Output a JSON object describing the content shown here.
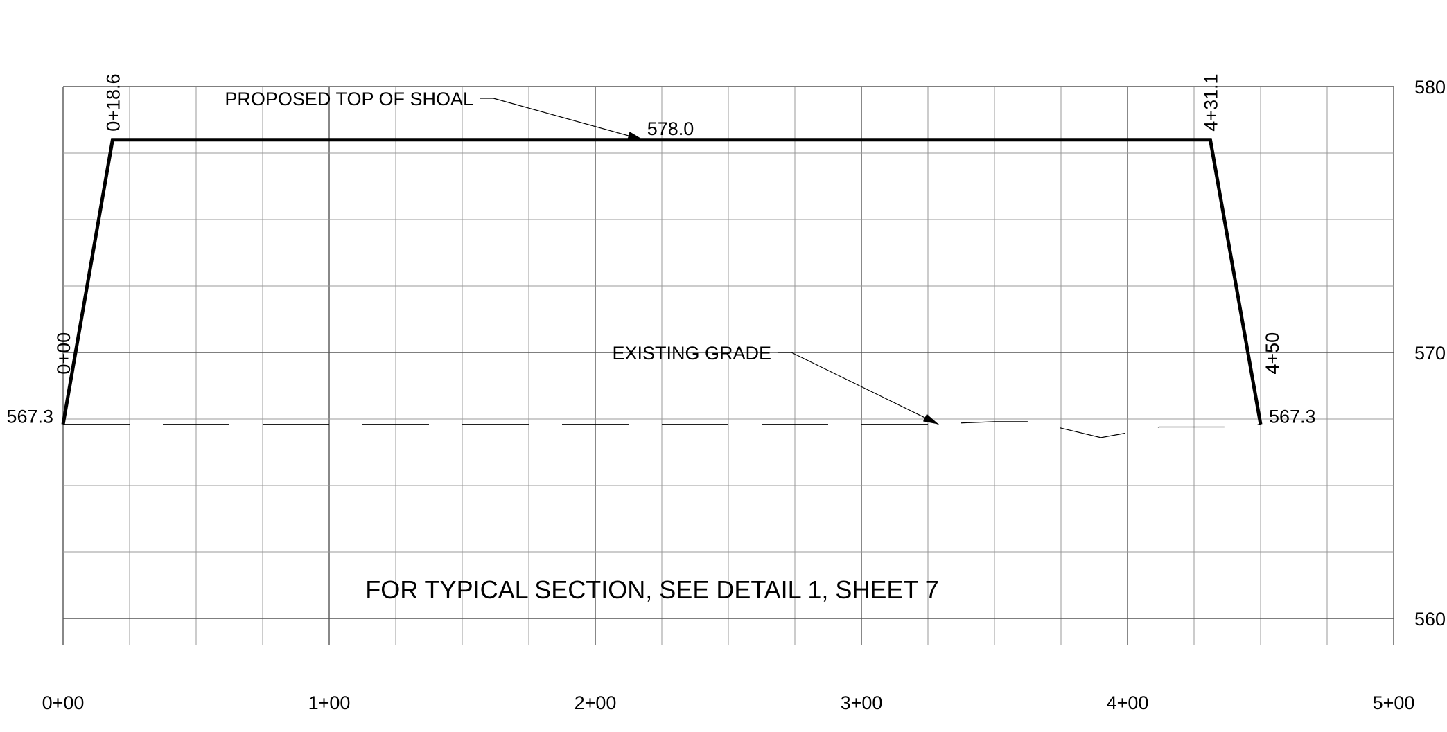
{
  "chart_data": {
    "type": "line",
    "title": "",
    "xlabel": "",
    "ylabel": "",
    "xlim": [
      0,
      500
    ],
    "ylim": [
      560,
      580
    ],
    "grid": true,
    "x_ticks": [
      {
        "x": 0,
        "label": "0+00"
      },
      {
        "x": 100,
        "label": "1+00"
      },
      {
        "x": 200,
        "label": "2+00"
      },
      {
        "x": 300,
        "label": "3+00"
      },
      {
        "x": 400,
        "label": "4+00"
      },
      {
        "x": 500,
        "label": "5+00"
      }
    ],
    "y_ticks": [
      {
        "y": 560,
        "label": "560"
      },
      {
        "y": 570,
        "label": "570"
      },
      {
        "y": 580,
        "label": "580"
      }
    ],
    "series": [
      {
        "name": "PROPOSED TOP OF SHOAL",
        "style": "solid",
        "x": [
          0,
          18.6,
          431.1,
          450
        ],
        "y": [
          567.3,
          578.0,
          578.0,
          567.3
        ]
      },
      {
        "name": "EXISTING GRADE",
        "style": "dashed",
        "x": [
          0,
          325,
          350,
          365,
          390,
          412,
          425,
          440,
          450
        ],
        "y": [
          567.3,
          567.3,
          567.4,
          567.4,
          566.8,
          567.2,
          567.2,
          567.2,
          567.3
        ]
      }
    ],
    "station_labels": [
      {
        "x": 0,
        "y": 567.3,
        "label": "0+00"
      },
      {
        "x": 18.6,
        "y": 578.0,
        "label": "0+18.6"
      },
      {
        "x": 431.1,
        "y": 578.0,
        "label": "4+31.1"
      },
      {
        "x": 450,
        "y": 567.3,
        "label": "4+50"
      }
    ],
    "elevation_labels": [
      {
        "x": 0,
        "y": 567.3,
        "label": "567.3"
      },
      {
        "x": 450,
        "y": 567.3,
        "label": "567.3"
      },
      {
        "x": 228,
        "y": 578.0,
        "label": "578.0"
      }
    ],
    "callouts": [
      {
        "text": "PROPOSED TOP OF SHOAL",
        "target_x": 218,
        "target_y": 578.0
      },
      {
        "text": "EXISTING GRADE",
        "target_x": 329,
        "target_y": 567.3
      }
    ],
    "note": "FOR TYPICAL SECTION, SEE DETAIL 1, SHEET 7"
  }
}
